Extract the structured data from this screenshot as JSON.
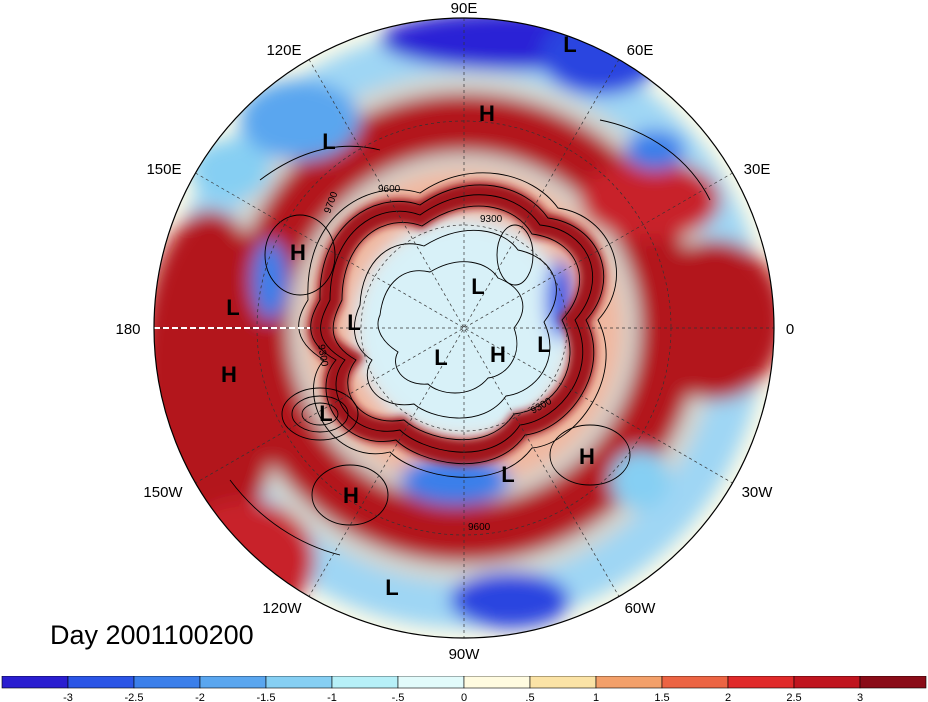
{
  "date_label": "Day 2001100200",
  "longitude_labels": {
    "top": "90E",
    "top_right": "60E",
    "upper_right": "30E",
    "right": "0",
    "lower_right": "30W",
    "bottom_right": "60W",
    "bottom": "90W",
    "bottom_left": "120W",
    "lower_left": "150W",
    "left": "180",
    "upper_left": "150E",
    "top_left": "120E"
  },
  "pressure_centers": [
    {
      "label": "L"
    },
    {
      "label": "H"
    },
    {
      "label": "L"
    },
    {
      "label": "H"
    },
    {
      "label": "L"
    },
    {
      "label": "H"
    },
    {
      "label": "L"
    },
    {
      "label": "L"
    },
    {
      "label": "L"
    },
    {
      "label": "H"
    },
    {
      "label": "L"
    },
    {
      "label": "L"
    },
    {
      "label": "L"
    },
    {
      "label": "H"
    },
    {
      "label": "H"
    },
    {
      "label": "L"
    }
  ],
  "contour_labels": [
    "9700",
    "9300",
    "9300",
    "9300",
    "9600",
    "9600"
  ],
  "colors": {
    "neg_strong": "#1e1ed8",
    "neg_mid": "#4a8fe8",
    "neg_weak": "#a8e6f5",
    "neutral": "#fdfbe8",
    "pos_weak": "#f6c48a",
    "pos_mid": "#e8503c",
    "pos_strong": "#a1141e",
    "contour": "#000000"
  },
  "colorbar": {
    "ticks": [
      "-3",
      "-2.5",
      "-2",
      "-1.5",
      "-1",
      "-.5",
      "0",
      ".5",
      "1",
      "1.5",
      "2",
      "2.5",
      "3"
    ],
    "bins": [
      "#2a1ed0",
      "#2b55e6",
      "#3b7fea",
      "#5aa6ef",
      "#86cff3",
      "#b7f0f8",
      "#e2fbfb",
      "#fffbe0",
      "#fbe3a6",
      "#f3a06a",
      "#ec6443",
      "#e02a2a",
      "#c0151f",
      "#8a0c18"
    ]
  }
}
